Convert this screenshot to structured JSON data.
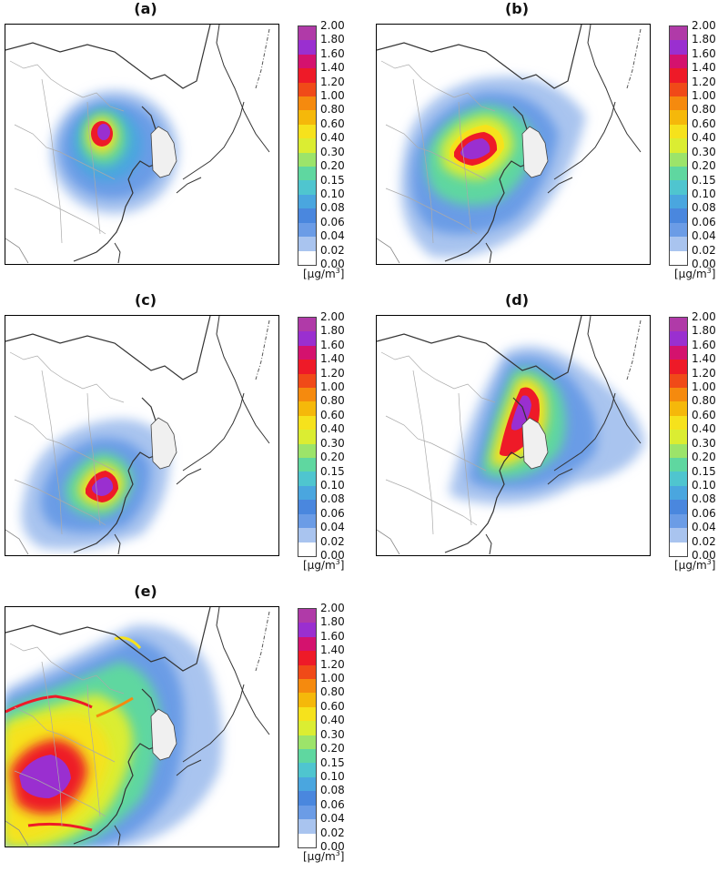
{
  "figure": {
    "panels": [
      {
        "id": "a",
        "label": "(a)"
      },
      {
        "id": "b",
        "label": "(b)"
      },
      {
        "id": "c",
        "label": "(c)"
      },
      {
        "id": "d",
        "label": "(d)"
      },
      {
        "id": "e",
        "label": "(e)"
      }
    ]
  },
  "colorbar": {
    "ticks": [
      "2.00",
      "1.80",
      "1.60",
      "1.40",
      "1.20",
      "1.00",
      "0.80",
      "0.60",
      "0.40",
      "0.30",
      "0.20",
      "0.15",
      "0.10",
      "0.08",
      "0.06",
      "0.04",
      "0.02",
      "0.00"
    ],
    "colors": [
      "#b03aa8",
      "#9a2fd0",
      "#d4126e",
      "#ee1a28",
      "#f04a18",
      "#f58a0e",
      "#f5b80a",
      "#f6e21c",
      "#dbed32",
      "#9ce46a",
      "#5fd7a0",
      "#4fc5cf",
      "#4aa6df",
      "#4a87de",
      "#6b9ce6",
      "#a9c4ef",
      "#ffffff"
    ],
    "unit_base": "[μg/m",
    "unit_exp": "3",
    "unit_close": "]"
  }
}
